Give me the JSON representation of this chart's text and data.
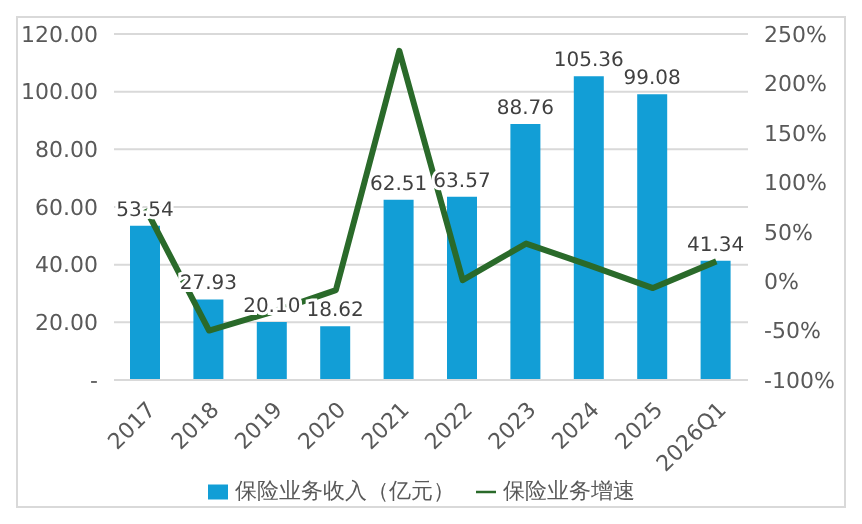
{
  "chart_data": {
    "type": "bar",
    "categories": [
      "2017",
      "2018",
      "2019",
      "2020",
      "2021",
      "2022",
      "2023",
      "2024",
      "2025",
      "2026Q1"
    ],
    "series": [
      {
        "name": "保险业务收入（亿元）",
        "color": "#129ed6",
        "values": [
          53.54,
          27.93,
          20.1,
          18.62,
          62.51,
          63.57,
          88.76,
          105.36,
          99.08,
          41.34
        ],
        "value_labels": [
          "53.54",
          "27.93",
          "20.10",
          "18.62",
          "62.51",
          "63.57",
          "88.76",
          "105.36",
          "99.08",
          "41.34"
        ]
      },
      {
        "name": "保险业务增速",
        "type": "line",
        "axis": "y2",
        "color": "#2a6a2a",
        "values": [
          73,
          -50,
          -31,
          -9,
          233,
          1,
          38,
          16,
          -7,
          20
        ]
      }
    ],
    "ylim": [
      0,
      120
    ],
    "yticks": [
      {
        "value": 0,
        "label": "-"
      },
      {
        "value": 20,
        "label": "20.00"
      },
      {
        "value": 40,
        "label": "40.00"
      },
      {
        "value": 60,
        "label": "60.00"
      },
      {
        "value": 80,
        "label": "80.00"
      },
      {
        "value": 100,
        "label": "100.00"
      },
      {
        "value": 120,
        "label": "120.00"
      }
    ],
    "y2lim": [
      -100,
      250
    ],
    "y2ticks": [
      {
        "value": -100,
        "label": "-100%"
      },
      {
        "value": -50,
        "label": "-50%"
      },
      {
        "value": 0,
        "label": "0%"
      },
      {
        "value": 50,
        "label": "50%"
      },
      {
        "value": 100,
        "label": "100%"
      },
      {
        "value": 150,
        "label": "150%"
      },
      {
        "value": 200,
        "label": "200%"
      },
      {
        "value": 250,
        "label": "250%"
      }
    ],
    "grid": "y",
    "legend": "bottom",
    "marker": "none"
  }
}
